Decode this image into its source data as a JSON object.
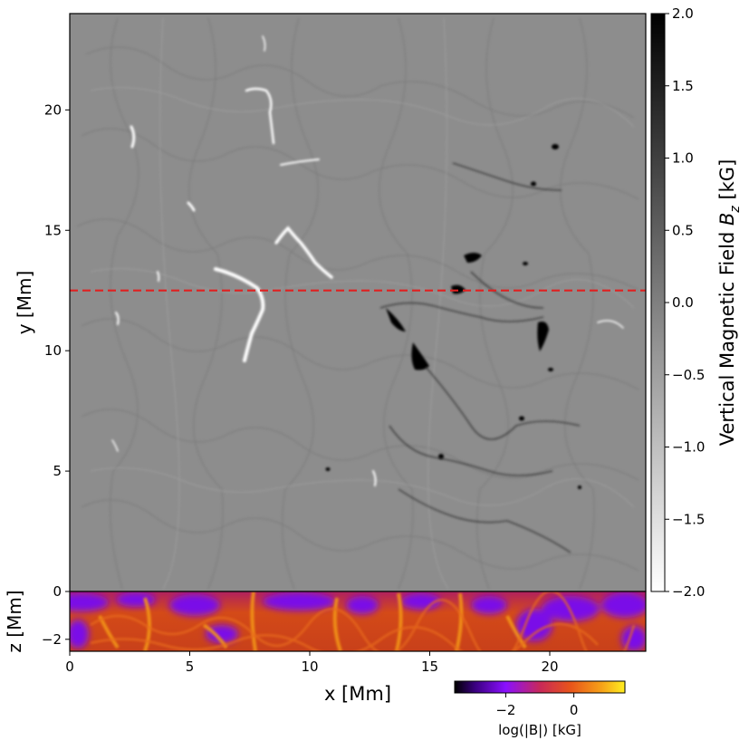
{
  "chart_data": [
    {
      "type": "heatmap",
      "panel": "top view",
      "quantity": "Vertical Magnetic Field B_z",
      "xlim": [
        0,
        24
      ],
      "ylim": [
        0,
        24
      ],
      "ylabel": "y [Mm]",
      "yticks": [
        5,
        10,
        15,
        20
      ],
      "cut_line": {
        "y": 12.5,
        "style": "dashed",
        "color": "#e02020"
      },
      "colormap": "gray reversed (white = -2.0, black = 2.0)",
      "colorbar": {
        "label_prefix": "Vertical Magnetic Field ",
        "label_symbol": "B",
        "label_subscript": "z",
        "label_suffix": " [kG]",
        "range": [
          -2.0,
          2.0
        ],
        "ticks": [
          "2.0",
          "1.5",
          "1.0",
          "0.5",
          "0.0",
          "−0.5",
          "−1.0",
          "−1.5",
          "−2.0"
        ],
        "tick_values": [
          2.0,
          1.5,
          1.0,
          0.5,
          0.0,
          -0.5,
          -1.0,
          -1.5,
          -2.0
        ]
      }
    },
    {
      "type": "heatmap",
      "panel": "vertical slice",
      "quantity": "log(|B|)",
      "xlim": [
        0,
        24
      ],
      "ylim": [
        -2.5,
        0
      ],
      "xlabel": "x [Mm]",
      "ylabel": "z [Mm]",
      "xticks": [
        0,
        5,
        10,
        15,
        20
      ],
      "yticks": [
        0,
        -2
      ],
      "ytick_labels": [
        "0",
        "−2"
      ],
      "colormap": "gnuplot2-like (black - purple - red - orange - yellow)",
      "colorbar": {
        "label": "log(|B|) [kG]",
        "range": [
          -3.5,
          1.5
        ],
        "ticks": [
          "−2",
          "0"
        ],
        "tick_values": [
          -2,
          0
        ]
      }
    }
  ]
}
